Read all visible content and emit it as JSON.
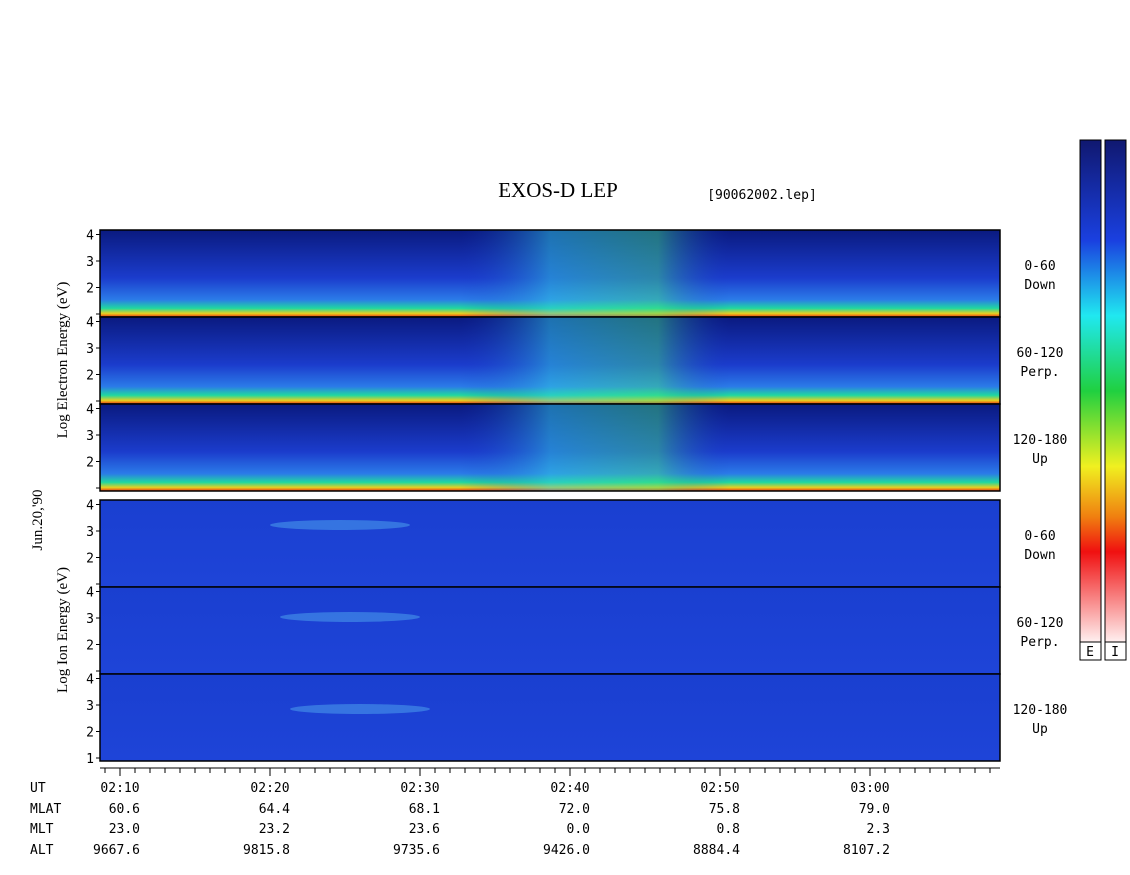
{
  "title": "EXOS-D LEP",
  "file": "[90062002.lep]",
  "date": "Jun.20,'90",
  "electron_axis_label": "Log Electron Energy (eV)",
  "ion_axis_label": "Log Ion Energy (eV)",
  "electron_panels": [
    {
      "ticks": [
        2,
        3,
        4
      ],
      "pitch": "0-60",
      "direction": "Down"
    },
    {
      "ticks": [
        2,
        3,
        4
      ],
      "pitch": "60-120",
      "direction": "Perp."
    },
    {
      "ticks": [
        2,
        3,
        4
      ],
      "pitch": "120-180",
      "direction": "Up"
    }
  ],
  "ion_panels": [
    {
      "ticks": [
        2,
        3,
        4
      ],
      "pitch": "0-60",
      "direction": "Down"
    },
    {
      "ticks": [
        2,
        3,
        4
      ],
      "pitch": "60-120",
      "direction": "Perp."
    },
    {
      "ticks": [
        1,
        2,
        3,
        4
      ],
      "pitch": "120-180",
      "direction": "Up"
    }
  ],
  "time_rows": [
    {
      "name": "UT",
      "values": [
        "02:10",
        "02:20",
        "02:30",
        "02:40",
        "02:50",
        "03:00"
      ]
    },
    {
      "name": "MLAT",
      "values": [
        "60.6",
        "64.4",
        "68.1",
        "72.0",
        "75.8",
        "79.0"
      ]
    },
    {
      "name": "MLT",
      "values": [
        "23.0",
        "23.2",
        "23.6",
        "0.0",
        "0.8",
        "2.3"
      ]
    },
    {
      "name": "ALT",
      "values": [
        "9667.6",
        "9815.8",
        "9735.6",
        "9426.0",
        "8884.4",
        "8107.2"
      ]
    }
  ],
  "colorbar_labels": [
    "E",
    "I"
  ]
}
